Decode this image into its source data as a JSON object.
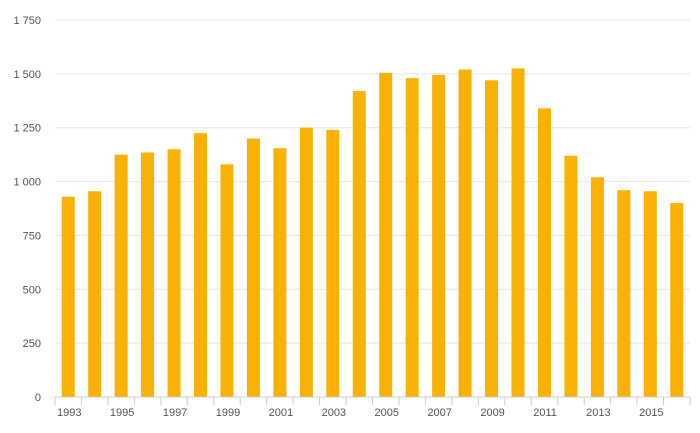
{
  "chart_data": {
    "type": "bar",
    "title": "",
    "xlabel": "",
    "ylabel": "",
    "categories": [
      "1993",
      "1994",
      "1995",
      "1996",
      "1997",
      "1998",
      "1999",
      "2000",
      "2001",
      "2002",
      "2003",
      "2004",
      "2005",
      "2006",
      "2007",
      "2008",
      "2009",
      "2010",
      "2011",
      "2012",
      "2013",
      "2014",
      "2015",
      "2016"
    ],
    "x_tick_labels": [
      "1993",
      "1995",
      "1997",
      "1999",
      "2001",
      "2003",
      "2005",
      "2007",
      "2009",
      "2011",
      "2013",
      "2015"
    ],
    "values": [
      930,
      955,
      1125,
      1135,
      1150,
      1225,
      1080,
      1200,
      1155,
      1250,
      1240,
      1420,
      1505,
      1480,
      1495,
      1520,
      1470,
      1525,
      1340,
      1120,
      1020,
      960,
      955,
      900
    ],
    "ylim": [
      0,
      1750
    ],
    "y_ticks": [
      0,
      250,
      500,
      750,
      1000,
      1250,
      1500,
      1750
    ],
    "y_tick_labels": [
      "0",
      "250",
      "500",
      "750",
      "1 000",
      "1 250",
      "1 500",
      "1 750"
    ],
    "grid": true,
    "bar_color": "#F9B105",
    "grid_color": "#E6E6E6",
    "axis_color": "#CCCCCC"
  }
}
